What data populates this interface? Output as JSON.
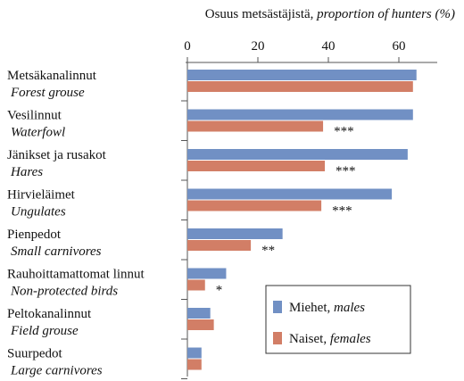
{
  "chart_data": {
    "type": "hbar",
    "title": "Osuus metsästäjistä,",
    "title_en": "proportion of hunters (%)",
    "categories": [
      "Metsäkanalinnut",
      "Vesilinnut",
      "Jänikset ja rusakot",
      "Hirvieläimet",
      "Pienpedot",
      "Rauhoittamattomat linnut",
      "Peltokanalinnut",
      "Suurpedot"
    ],
    "categories_en": [
      "Forest grouse",
      "Waterfowl",
      "Hares",
      "Ungulates",
      "Small carnivores",
      "Non-protected birds",
      "Field grouse",
      "Large carnivores"
    ],
    "series": [
      {
        "name": "Miehet,",
        "name_en": "males",
        "color": "#7190c4",
        "values": [
          65,
          64,
          62.5,
          58,
          27,
          11,
          6.5,
          4
        ]
      },
      {
        "name": "Naiset,",
        "name_en": "females",
        "color": "#d27e66",
        "values": [
          64,
          38.5,
          39,
          38,
          18,
          5,
          7.5,
          4
        ]
      }
    ],
    "significance": [
      null,
      "***",
      "***",
      "***",
      "**",
      "*",
      null,
      null
    ],
    "xlim": [
      0,
      70
    ],
    "xticks": [
      0,
      20,
      40,
      60
    ],
    "legend": "lower right"
  }
}
